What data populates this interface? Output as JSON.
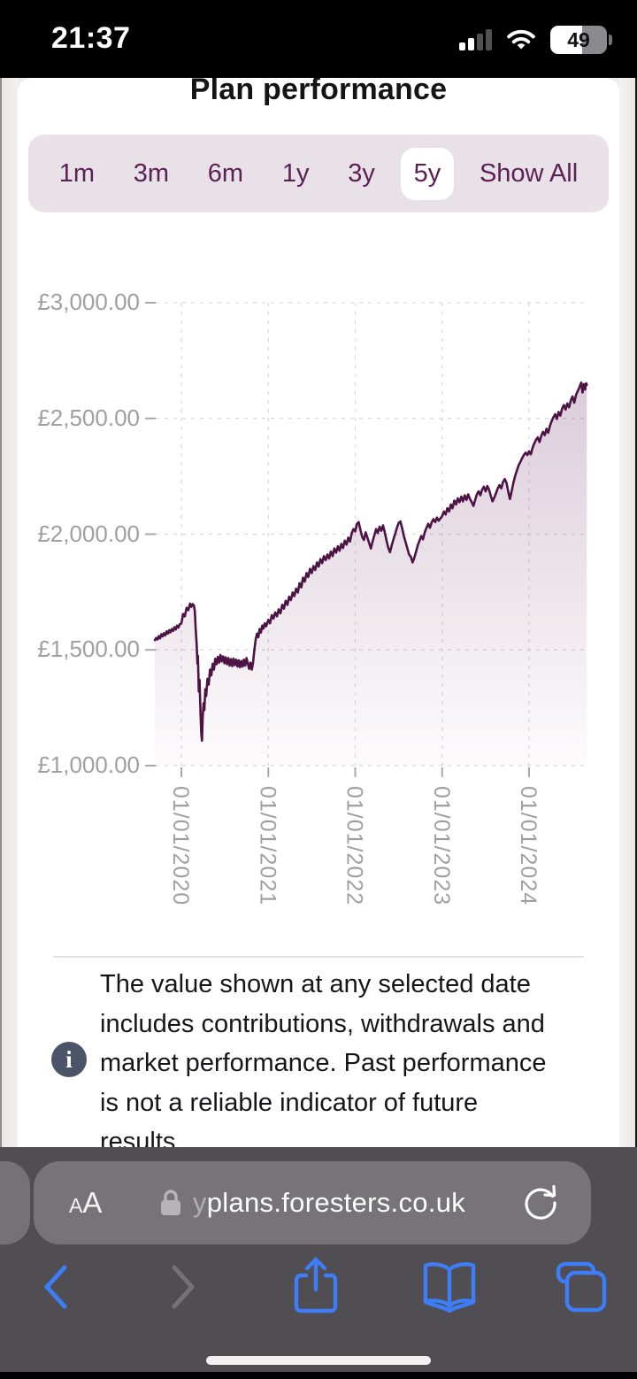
{
  "status_bar": {
    "time": "21:37",
    "battery_percent": "49",
    "icons": [
      "cell-signal-icon",
      "wifi-icon",
      "battery-icon"
    ]
  },
  "page": {
    "title": "Plan performance"
  },
  "range_selector": {
    "options": [
      {
        "label": "1m",
        "selected": false
      },
      {
        "label": "3m",
        "selected": false
      },
      {
        "label": "6m",
        "selected": false
      },
      {
        "label": "1y",
        "selected": false
      },
      {
        "label": "3y",
        "selected": false
      },
      {
        "label": "5y",
        "selected": true
      },
      {
        "label": "Show All",
        "selected": false
      }
    ]
  },
  "chart_data": {
    "type": "area",
    "title": "Plan performance",
    "xlabel": "",
    "ylabel": "",
    "ylim": [
      1000,
      3000
    ],
    "grid": "dashed",
    "legend": "none",
    "line_color": "#4e1345",
    "fill_top_color": "rgba(114,54,103,0.30)",
    "fill_bottom_color": "rgba(114,54,103,0.02)",
    "y_ticks": [
      {
        "label": "£3,000.00",
        "value": 3000
      },
      {
        "label": "£2,500.00",
        "value": 2500
      },
      {
        "label": "£2,000.00",
        "value": 2000
      },
      {
        "label": "£1,500.00",
        "value": 1500
      },
      {
        "label": "£1,000.00",
        "value": 1000
      }
    ],
    "x_ticks": [
      {
        "label": "01/01/2020",
        "t": 0
      },
      {
        "label": "01/01/2021",
        "t": 1
      },
      {
        "label": "01/01/2022",
        "t": 2
      },
      {
        "label": "01/01/2023",
        "t": 3
      },
      {
        "label": "01/01/2024",
        "t": 4
      }
    ],
    "x_unit": "years_since_2020_01_01",
    "points": [
      [
        -0.305,
        1542
      ],
      [
        -0.29,
        1552
      ],
      [
        -0.275,
        1545
      ],
      [
        -0.26,
        1560
      ],
      [
        -0.245,
        1550
      ],
      [
        -0.23,
        1568
      ],
      [
        -0.215,
        1558
      ],
      [
        -0.2,
        1572
      ],
      [
        -0.185,
        1563
      ],
      [
        -0.17,
        1580
      ],
      [
        -0.155,
        1570
      ],
      [
        -0.14,
        1585
      ],
      [
        -0.125,
        1576
      ],
      [
        -0.11,
        1590
      ],
      [
        -0.095,
        1582
      ],
      [
        -0.08,
        1598
      ],
      [
        -0.065,
        1588
      ],
      [
        -0.05,
        1605
      ],
      [
        -0.035,
        1596
      ],
      [
        -0.02,
        1610
      ],
      [
        0,
        1615
      ],
      [
        0.02,
        1655
      ],
      [
        0.04,
        1645
      ],
      [
        0.06,
        1682
      ],
      [
        0.08,
        1672
      ],
      [
        0.1,
        1700
      ],
      [
        0.115,
        1686
      ],
      [
        0.13,
        1698
      ],
      [
        0.145,
        1692
      ],
      [
        0.155,
        1668
      ],
      [
        0.165,
        1590
      ],
      [
        0.175,
        1530
      ],
      [
        0.185,
        1440
      ],
      [
        0.19,
        1475
      ],
      [
        0.2,
        1320
      ],
      [
        0.21,
        1370
      ],
      [
        0.22,
        1230
      ],
      [
        0.23,
        1135
      ],
      [
        0.237,
        1108
      ],
      [
        0.245,
        1210
      ],
      [
        0.255,
        1270
      ],
      [
        0.265,
        1240
      ],
      [
        0.275,
        1330
      ],
      [
        0.285,
        1300
      ],
      [
        0.3,
        1375
      ],
      [
        0.315,
        1350
      ],
      [
        0.33,
        1415
      ],
      [
        0.345,
        1390
      ],
      [
        0.36,
        1440
      ],
      [
        0.375,
        1415
      ],
      [
        0.39,
        1462
      ],
      [
        0.405,
        1438
      ],
      [
        0.42,
        1470
      ],
      [
        0.435,
        1445
      ],
      [
        0.45,
        1478
      ],
      [
        0.465,
        1450
      ],
      [
        0.48,
        1472
      ],
      [
        0.495,
        1442
      ],
      [
        0.51,
        1468
      ],
      [
        0.525,
        1438
      ],
      [
        0.54,
        1465
      ],
      [
        0.555,
        1432
      ],
      [
        0.57,
        1460
      ],
      [
        0.585,
        1430
      ],
      [
        0.6,
        1462
      ],
      [
        0.615,
        1434
      ],
      [
        0.63,
        1458
      ],
      [
        0.645,
        1428
      ],
      [
        0.66,
        1455
      ],
      [
        0.675,
        1425
      ],
      [
        0.69,
        1452
      ],
      [
        0.705,
        1428
      ],
      [
        0.72,
        1458
      ],
      [
        0.735,
        1432
      ],
      [
        0.75,
        1465
      ],
      [
        0.765,
        1440
      ],
      [
        0.78,
        1418
      ],
      [
        0.795,
        1445
      ],
      [
        0.81,
        1415
      ],
      [
        0.825,
        1448
      ],
      [
        0.84,
        1500
      ],
      [
        0.855,
        1545
      ],
      [
        0.87,
        1570
      ],
      [
        0.885,
        1555
      ],
      [
        0.9,
        1590
      ],
      [
        0.915,
        1575
      ],
      [
        0.93,
        1605
      ],
      [
        0.945,
        1592
      ],
      [
        0.96,
        1615
      ],
      [
        0.975,
        1602
      ],
      [
        1,
        1630
      ],
      [
        1.02,
        1615
      ],
      [
        1.04,
        1650
      ],
      [
        1.06,
        1635
      ],
      [
        1.08,
        1662
      ],
      [
        1.1,
        1645
      ],
      [
        1.12,
        1675
      ],
      [
        1.14,
        1658
      ],
      [
        1.16,
        1695
      ],
      [
        1.18,
        1678
      ],
      [
        1.2,
        1712
      ],
      [
        1.22,
        1695
      ],
      [
        1.24,
        1730
      ],
      [
        1.26,
        1715
      ],
      [
        1.28,
        1748
      ],
      [
        1.3,
        1732
      ],
      [
        1.32,
        1765
      ],
      [
        1.34,
        1748
      ],
      [
        1.36,
        1788
      ],
      [
        1.38,
        1770
      ],
      [
        1.4,
        1812
      ],
      [
        1.42,
        1795
      ],
      [
        1.44,
        1832
      ],
      [
        1.46,
        1815
      ],
      [
        1.48,
        1850
      ],
      [
        1.5,
        1832
      ],
      [
        1.52,
        1862
      ],
      [
        1.54,
        1845
      ],
      [
        1.56,
        1878
      ],
      [
        1.58,
        1860
      ],
      [
        1.6,
        1892
      ],
      [
        1.62,
        1875
      ],
      [
        1.64,
        1905
      ],
      [
        1.66,
        1888
      ],
      [
        1.68,
        1912
      ],
      [
        1.7,
        1895
      ],
      [
        1.72,
        1925
      ],
      [
        1.74,
        1905
      ],
      [
        1.76,
        1938
      ],
      [
        1.78,
        1920
      ],
      [
        1.8,
        1948
      ],
      [
        1.82,
        1928
      ],
      [
        1.84,
        1958
      ],
      [
        1.86,
        1940
      ],
      [
        1.88,
        1972
      ],
      [
        1.9,
        1955
      ],
      [
        1.92,
        1985
      ],
      [
        1.94,
        1968
      ],
      [
        1.96,
        2005
      ],
      [
        1.98,
        2022
      ],
      [
        2,
        2012
      ],
      [
        2.02,
        2045
      ],
      [
        2.04,
        2052
      ],
      [
        2.06,
        2018
      ],
      [
        2.08,
        1988
      ],
      [
        2.1,
        1975
      ],
      [
        2.12,
        2008
      ],
      [
        2.14,
        1985
      ],
      [
        2.16,
        1962
      ],
      [
        2.18,
        1938
      ],
      [
        2.2,
        1968
      ],
      [
        2.22,
        1995
      ],
      [
        2.24,
        2022
      ],
      [
        2.26,
        2005
      ],
      [
        2.28,
        2032
      ],
      [
        2.3,
        2015
      ],
      [
        2.32,
        2038
      ],
      [
        2.34,
        2008
      ],
      [
        2.36,
        1972
      ],
      [
        2.38,
        1942
      ],
      [
        2.4,
        1922
      ],
      [
        2.42,
        1952
      ],
      [
        2.44,
        1978
      ],
      [
        2.46,
        2002
      ],
      [
        2.48,
        2028
      ],
      [
        2.5,
        2048
      ],
      [
        2.52,
        2055
      ],
      [
        2.54,
        2025
      ],
      [
        2.56,
        1992
      ],
      [
        2.58,
        1965
      ],
      [
        2.6,
        1938
      ],
      [
        2.62,
        1912
      ],
      [
        2.64,
        1902
      ],
      [
        2.66,
        1878
      ],
      [
        2.68,
        1898
      ],
      [
        2.7,
        1925
      ],
      [
        2.72,
        1952
      ],
      [
        2.74,
        1972
      ],
      [
        2.76,
        1992
      ],
      [
        2.78,
        1978
      ],
      [
        2.8,
        2008
      ],
      [
        2.82,
        2028
      ],
      [
        2.84,
        2045
      ],
      [
        2.86,
        2028
      ],
      [
        2.88,
        2052
      ],
      [
        2.9,
        2065
      ],
      [
        2.92,
        2052
      ],
      [
        2.94,
        2072
      ],
      [
        2.96,
        2058
      ],
      [
        2.98,
        2068
      ],
      [
        3,
        2078
      ],
      [
        3.02,
        2098
      ],
      [
        3.04,
        2085
      ],
      [
        3.06,
        2112
      ],
      [
        3.08,
        2098
      ],
      [
        3.1,
        2128
      ],
      [
        3.12,
        2112
      ],
      [
        3.14,
        2145
      ],
      [
        3.16,
        2128
      ],
      [
        3.18,
        2155
      ],
      [
        3.2,
        2138
      ],
      [
        3.22,
        2162
      ],
      [
        3.24,
        2142
      ],
      [
        3.26,
        2168
      ],
      [
        3.28,
        2148
      ],
      [
        3.3,
        2172
      ],
      [
        3.32,
        2152
      ],
      [
        3.34,
        2138
      ],
      [
        3.36,
        2122
      ],
      [
        3.38,
        2148
      ],
      [
        3.4,
        2172
      ],
      [
        3.42,
        2185
      ],
      [
        3.44,
        2168
      ],
      [
        3.46,
        2192
      ],
      [
        3.48,
        2205
      ],
      [
        3.5,
        2185
      ],
      [
        3.52,
        2208
      ],
      [
        3.54,
        2192
      ],
      [
        3.56,
        2165
      ],
      [
        3.58,
        2142
      ],
      [
        3.6,
        2158
      ],
      [
        3.62,
        2178
      ],
      [
        3.64,
        2198
      ],
      [
        3.66,
        2212
      ],
      [
        3.68,
        2198
      ],
      [
        3.7,
        2225
      ],
      [
        3.72,
        2238
      ],
      [
        3.74,
        2222
      ],
      [
        3.76,
        2185
      ],
      [
        3.78,
        2152
      ],
      [
        3.8,
        2185
      ],
      [
        3.82,
        2222
      ],
      [
        3.84,
        2252
      ],
      [
        3.86,
        2275
      ],
      [
        3.88,
        2298
      ],
      [
        3.9,
        2312
      ],
      [
        3.92,
        2328
      ],
      [
        3.94,
        2342
      ],
      [
        3.96,
        2352
      ],
      [
        3.98,
        2342
      ],
      [
        4,
        2358
      ],
      [
        4.02,
        2345
      ],
      [
        4.04,
        2372
      ],
      [
        4.06,
        2392
      ],
      [
        4.08,
        2408
      ],
      [
        4.1,
        2418
      ],
      [
        4.12,
        2398
      ],
      [
        4.14,
        2425
      ],
      [
        4.16,
        2442
      ],
      [
        4.18,
        2428
      ],
      [
        4.2,
        2455
      ],
      [
        4.22,
        2438
      ],
      [
        4.24,
        2468
      ],
      [
        4.26,
        2488
      ],
      [
        4.28,
        2505
      ],
      [
        4.3,
        2518
      ],
      [
        4.32,
        2498
      ],
      [
        4.34,
        2528
      ],
      [
        4.36,
        2512
      ],
      [
        4.38,
        2542
      ],
      [
        4.4,
        2558
      ],
      [
        4.42,
        2538
      ],
      [
        4.44,
        2565
      ],
      [
        4.46,
        2548
      ],
      [
        4.48,
        2578
      ],
      [
        4.5,
        2595
      ],
      [
        4.52,
        2568
      ],
      [
        4.54,
        2602
      ],
      [
        4.56,
        2618
      ],
      [
        4.58,
        2635
      ],
      [
        4.6,
        2655
      ],
      [
        4.615,
        2612
      ],
      [
        4.63,
        2648
      ],
      [
        4.645,
        2625
      ],
      [
        4.655,
        2652
      ],
      [
        4.665,
        2645
      ]
    ]
  },
  "info": {
    "icon": "info-icon",
    "icon_glyph": "i",
    "text": "The value shown at any selected date\nincludes contributions, withdrawals and\nmarket performance. Past performance\nis not a reliable indicator of future\nresults"
  },
  "url_bar": {
    "reader_label_small": "A",
    "reader_label_big": "A",
    "lock_icon": "lock-icon",
    "url_faded_prefix": "y",
    "url_rest": "plans.foresters.co.uk",
    "reload_icon": "reload-icon"
  },
  "bottom_nav": {
    "icons": [
      "back-icon",
      "forward-icon",
      "share-icon",
      "bookmarks-icon",
      "tabs-icon"
    ]
  },
  "colors": {
    "brand_plum": "#5c2153",
    "chart_line": "#4e1345",
    "selector_bg": "#e8e1e8",
    "ios_blue": "#3d7ef8",
    "toolbar_bg": "#504e52",
    "axis_grey": "#9f9f9f"
  }
}
